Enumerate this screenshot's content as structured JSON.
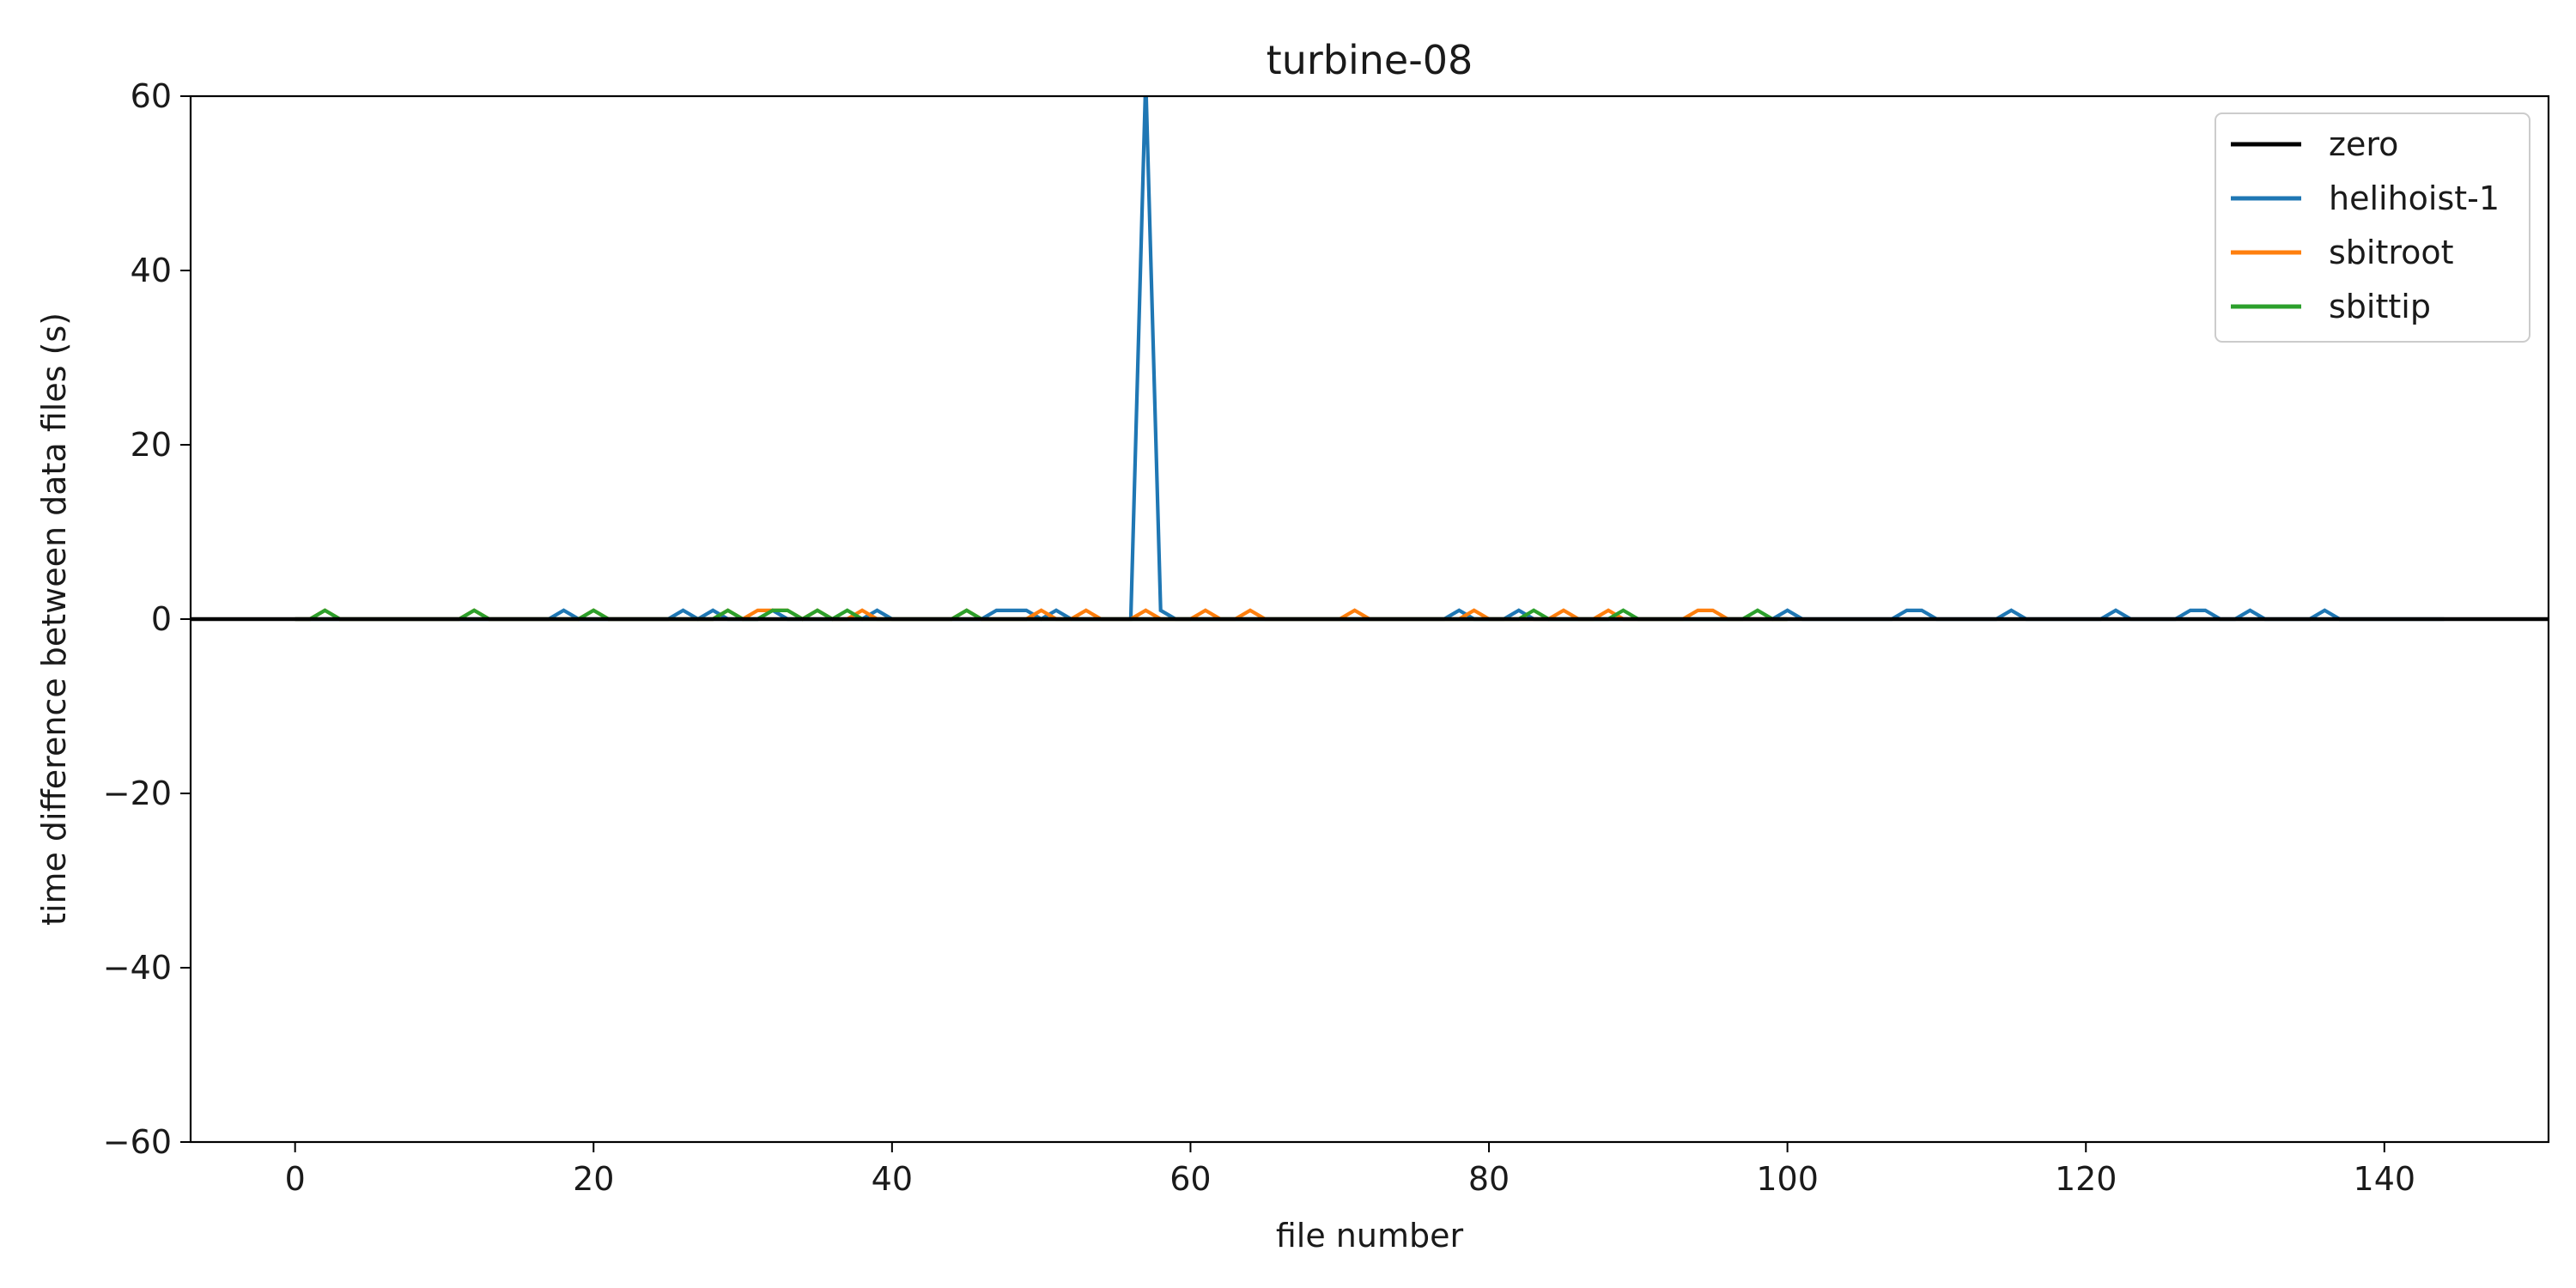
{
  "chart_data": {
    "type": "line",
    "title": "turbine-08",
    "xlabel": "file number",
    "ylabel": "time difference between data files (s)",
    "xlim": [
      -7,
      151
    ],
    "ylim": [
      -60,
      60
    ],
    "x_ticks": [
      0,
      20,
      40,
      60,
      80,
      100,
      120,
      140
    ],
    "y_ticks": [
      -60,
      -40,
      -20,
      0,
      20,
      40,
      60
    ],
    "x_tick_labels": [
      "0",
      "20",
      "40",
      "60",
      "80",
      "100",
      "120",
      "140"
    ],
    "y_tick_labels": [
      "−60",
      "−40",
      "−20",
      "0",
      "20",
      "40",
      "60"
    ],
    "grid": false,
    "legend_position": "top-right",
    "series": [
      {
        "name": "zero",
        "color": "#000000",
        "x": [
          -7,
          151
        ],
        "y": [
          0,
          0
        ]
      },
      {
        "name": "helihoist-1",
        "color": "#1f77b4",
        "x": [
          0,
          17,
          18,
          19,
          25,
          26,
          27,
          28,
          29,
          30,
          31,
          32,
          33,
          38,
          39,
          40,
          46,
          47,
          48,
          49,
          50,
          51,
          52,
          56,
          57,
          58,
          59,
          77,
          78,
          79,
          81,
          82,
          83,
          99,
          100,
          101,
          107,
          108,
          109,
          110,
          114,
          115,
          116,
          121,
          122,
          123,
          126,
          127,
          128,
          129,
          130,
          131,
          132,
          135,
          136,
          137,
          144
        ],
        "y": [
          0,
          0,
          1,
          0,
          0,
          1,
          0,
          1,
          0,
          0,
          0,
          1,
          0,
          0,
          1,
          0,
          0,
          1,
          1,
          1,
          0,
          1,
          0,
          0,
          62,
          1,
          0,
          0,
          1,
          0,
          0,
          1,
          0,
          0,
          1,
          0,
          0,
          1,
          1,
          0,
          0,
          1,
          0,
          0,
          1,
          0,
          0,
          1,
          1,
          0,
          0,
          1,
          0,
          0,
          1,
          0,
          0
        ]
      },
      {
        "name": "sbitroot",
        "color": "#ff7f0e",
        "x": [
          0,
          1,
          2,
          3,
          11,
          12,
          13,
          19,
          20,
          21,
          28,
          29,
          30,
          31,
          32,
          33,
          34,
          35,
          36,
          37,
          38,
          39,
          44,
          45,
          46,
          49,
          50,
          51,
          52,
          53,
          54,
          56,
          57,
          58,
          60,
          61,
          62,
          63,
          64,
          65,
          70,
          71,
          72,
          78,
          79,
          80,
          84,
          85,
          86,
          87,
          88,
          89,
          93,
          94,
          95,
          96,
          100
        ],
        "y": [
          0,
          0,
          1,
          0,
          0,
          1,
          0,
          0,
          1,
          0,
          0,
          1,
          0,
          1,
          1,
          1,
          0,
          1,
          0,
          0,
          1,
          0,
          0,
          1,
          0,
          0,
          1,
          0,
          0,
          1,
          0,
          0,
          1,
          0,
          0,
          1,
          0,
          0,
          1,
          0,
          0,
          1,
          0,
          0,
          1,
          0,
          0,
          1,
          0,
          0,
          1,
          0,
          0,
          1,
          1,
          0,
          0
        ]
      },
      {
        "name": "sbittip",
        "color": "#2ca02c",
        "x": [
          0,
          1,
          2,
          3,
          11,
          12,
          13,
          19,
          20,
          21,
          28,
          29,
          30,
          31,
          32,
          33,
          34,
          35,
          36,
          37,
          38,
          44,
          45,
          46,
          82,
          83,
          84,
          88,
          89,
          90,
          97,
          98,
          99,
          100
        ],
        "y": [
          0,
          0,
          1,
          0,
          0,
          1,
          0,
          0,
          1,
          0,
          0,
          1,
          0,
          0,
          1,
          1,
          0,
          1,
          0,
          1,
          0,
          0,
          1,
          0,
          0,
          1,
          0,
          0,
          1,
          0,
          0,
          1,
          0,
          0
        ]
      }
    ]
  }
}
